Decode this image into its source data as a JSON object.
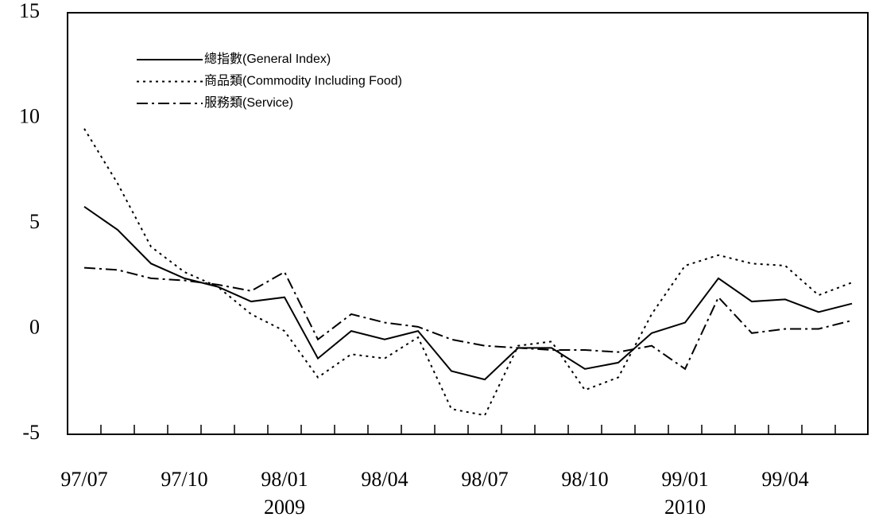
{
  "chart_data": {
    "type": "line",
    "categories": [
      "97/07",
      null,
      null,
      "97/10",
      null,
      null,
      "98/01",
      null,
      null,
      "98/04",
      null,
      null,
      "98/07",
      null,
      null,
      "98/10",
      null,
      null,
      "99/01",
      null,
      null,
      "99/04",
      null,
      null
    ],
    "year_labels": [
      null,
      null,
      null,
      null,
      null,
      null,
      "2009",
      null,
      null,
      null,
      null,
      null,
      null,
      null,
      null,
      null,
      null,
      null,
      "2010",
      null,
      null,
      null,
      null,
      null
    ],
    "series": [
      {
        "name": "總指數(General Index)",
        "color": "#000000",
        "dash": "solid",
        "values": [
          5.8,
          4.7,
          3.1,
          2.4,
          2.0,
          1.3,
          1.5,
          -1.4,
          -0.1,
          -0.5,
          -0.1,
          -2.0,
          -2.4,
          -0.9,
          -0.9,
          -1.9,
          -1.6,
          -0.2,
          0.3,
          2.4,
          1.3,
          1.4,
          0.8,
          1.2
        ]
      },
      {
        "name": "商品類(Commodity Including Food)",
        "color": "#000000",
        "dash": "dotted",
        "values": [
          9.5,
          6.9,
          3.9,
          2.7,
          2.0,
          0.7,
          -0.1,
          -2.3,
          -1.2,
          -1.4,
          -0.4,
          -3.8,
          -4.1,
          -0.8,
          -0.6,
          -2.9,
          -2.3,
          0.7,
          3.0,
          3.5,
          3.1,
          3.0,
          1.6,
          2.2
        ]
      },
      {
        "name": "服務類(Service)",
        "color": "#000000",
        "dash": "dashdot",
        "values": [
          2.9,
          2.8,
          2.4,
          2.3,
          2.1,
          1.8,
          2.7,
          -0.5,
          0.7,
          0.3,
          0.1,
          -0.5,
          -0.8,
          -0.9,
          -1.0,
          -1.0,
          -1.1,
          -0.8,
          -1.9,
          1.5,
          -0.2,
          0.0,
          0.0,
          0.4
        ]
      }
    ],
    "ylim": [
      -5,
      15
    ],
    "yticks": [
      -5,
      0,
      5,
      10,
      15
    ],
    "grid": false,
    "legend": "upper left"
  }
}
